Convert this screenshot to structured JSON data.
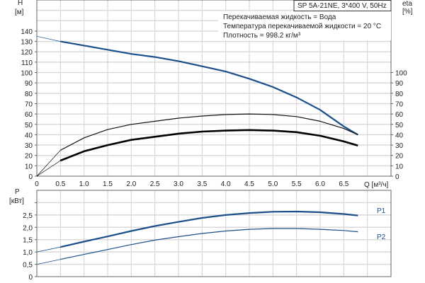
{
  "chart_data": [
    {
      "type": "line",
      "title": "SP 5A-21NE, 3*400 V, 50Hz",
      "annotations": [
        "Перекачиваемая жидкость = Вода",
        "Температура перекачиваемой жидкости = 20 °C",
        "Плотность = 998.2 кг/м³"
      ],
      "xlabel": "Q [м³/ч]",
      "ylabel": "H",
      "ylabel_unit": "[м]",
      "y2label": "eta",
      "y2label_unit": "[%]",
      "xlim": [
        0,
        7.5
      ],
      "ylim": [
        0,
        170
      ],
      "y2lim": [
        0,
        170
      ],
      "x_ticks": [
        "0",
        "0.5",
        "1.0",
        "1.5",
        "2.0",
        "2.5",
        "3.0",
        "3.5",
        "4.0",
        "4.5",
        "5.0",
        "5.5",
        "6.0",
        "6.5"
      ],
      "y_ticks": [
        0,
        10,
        20,
        30,
        40,
        50,
        60,
        70,
        80,
        90,
        100,
        110,
        120,
        130,
        140
      ],
      "y2_ticks": [
        0,
        10,
        20,
        30,
        40,
        50,
        60,
        70,
        80,
        90,
        100
      ],
      "grid": true,
      "x": [
        0,
        0.5,
        1,
        1.5,
        2,
        2.5,
        3,
        3.5,
        4,
        4.5,
        5,
        5.5,
        6,
        6.5,
        6.8
      ],
      "series": [
        {
          "key": "H",
          "axis": "left",
          "color": "#1a4f8b",
          "values": [
            135,
            130,
            126,
            122,
            118,
            115,
            111,
            106,
            101,
            94,
            86,
            76,
            64,
            48,
            40
          ]
        },
        {
          "key": "eta_pump",
          "axis": "right",
          "color": "#111111",
          "values": [
            0,
            25,
            37,
            45,
            50,
            53,
            56,
            58,
            59.5,
            60,
            59.5,
            57.5,
            53,
            46,
            40
          ]
        },
        {
          "key": "eta_total",
          "axis": "right",
          "color": "#000000",
          "values": [
            0,
            15,
            24,
            30,
            35,
            38,
            41,
            43,
            44,
            44.5,
            44,
            42.5,
            39,
            33.5,
            29.5
          ]
        }
      ]
    },
    {
      "type": "line",
      "ylabel": "P",
      "ylabel_unit": "[кВт]",
      "xlim": [
        0,
        7.5
      ],
      "ylim": [
        0,
        3.5
      ],
      "y_ticks": [
        "0",
        "0,5",
        "1,0",
        "1,5",
        "2,0",
        "2,5",
        ""
      ],
      "grid": true,
      "x": [
        0,
        0.5,
        1,
        1.5,
        2,
        2.5,
        3,
        3.5,
        4,
        4.5,
        5,
        5.5,
        6,
        6.5,
        6.8
      ],
      "series": [
        {
          "name": "P1",
          "color": "#1a4f8b",
          "values": [
            1.0,
            1.2,
            1.42,
            1.63,
            1.85,
            2.05,
            2.22,
            2.38,
            2.5,
            2.58,
            2.63,
            2.64,
            2.61,
            2.54,
            2.48
          ]
        },
        {
          "name": "P2",
          "color": "#1a4f8b",
          "values": [
            0.5,
            0.7,
            0.9,
            1.1,
            1.3,
            1.48,
            1.62,
            1.75,
            1.85,
            1.92,
            1.95,
            1.95,
            1.92,
            1.87,
            1.82
          ]
        }
      ]
    }
  ]
}
